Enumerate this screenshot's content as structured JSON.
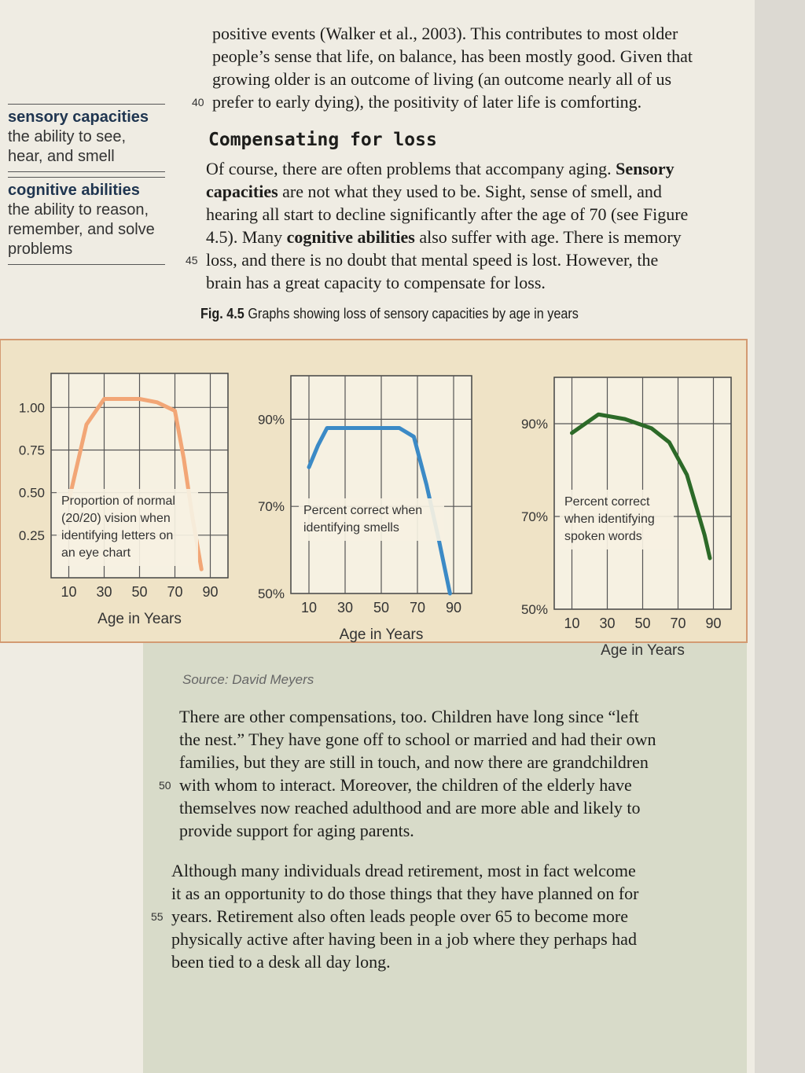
{
  "body_top": [
    "positive events (Walker et al., 2003). This contributes to most older",
    "people’s sense that life, on balance, has been mostly good. Given that",
    "growing older is an outcome of living (an outcome nearly all of us",
    "prefer to early dying), the positivity of later life is comforting."
  ],
  "heading": "Compensating for loss",
  "paragraph_1": [
    [
      "Of course, there are often problems that accompany aging. ",
      {
        "text": "Sensory",
        "bold": true
      }
    ],
    [
      {
        "text": "capacities",
        "bold": true
      },
      " are not what they used to be. Sight, sense of smell, and"
    ],
    "hearing all start to decline significantly after the age of 70 (see Figure",
    [
      "4.5). Many ",
      {
        "text": "cognitive abilities",
        "bold": true
      },
      " also suffer with age. There is memory"
    ],
    "loss, and there is no doubt that mental speed is lost. However, the",
    "brain has a great capacity to compensate for loss."
  ],
  "paragraph_2": [
    "There are other compensations, too. Children have long since “left",
    "the nest.” They have gone off to school or married and had their own",
    "families, but they are still in touch, and now there are grandchildren",
    "with whom to interact. Moreover, the children of the elderly have",
    "themselves now reached adulthood and are more able and likely to",
    "provide support for aging parents."
  ],
  "paragraph_3": [
    "Although many individuals dread retirement, most in fact welcome",
    "it as an opportunity to do those things that they have planned on for",
    "years. Retirement also often leads people over 65 to become more",
    "physically active after having been in a job where they perhaps had",
    "been tied to a desk all day long."
  ],
  "margin_numbers": [
    "40",
    "45",
    "50",
    "55"
  ],
  "glossary": [
    {
      "term": "sensory capacities",
      "definition": "the ability to see, hear, and smell"
    },
    {
      "term": "cognitive abilities",
      "definition": "the ability to reason, remember, and solve problems"
    }
  ],
  "figure": {
    "caption": {
      "label": "Fig. 4.5",
      "text": "Graphs showing loss of sensory capacities by age in years"
    },
    "source": "Source: David Meyers",
    "charts": [
      {
        "type": "line",
        "annotation": [
          "Proportion of normal",
          "(20/20) vision when",
          "identifying letters on",
          "an eye chart"
        ],
        "x_label": "Age in Years",
        "color": "#f2a676",
        "x": [
          10,
          20,
          30,
          50,
          60,
          70,
          75,
          80,
          85
        ],
        "values": [
          0.45,
          0.9,
          1.05,
          1.05,
          1.03,
          0.98,
          0.7,
          0.35,
          0.05
        ],
        "xlim": [
          0,
          100
        ],
        "xticks": [
          10,
          30,
          50,
          70,
          90
        ],
        "ylim": [
          0,
          1.2
        ],
        "yticks": [
          {
            "value": 0.25,
            "label": "0.25"
          },
          {
            "value": 0.5,
            "label": "0.50"
          },
          {
            "value": 0.75,
            "label": "0.75"
          },
          {
            "value": 1,
            "label": "1.00"
          }
        ],
        "grid": true
      },
      {
        "type": "line",
        "annotation": [
          "Percent correct when",
          "identifying smells"
        ],
        "x_label": "Age in Years",
        "color": "#3b8ac6",
        "x": [
          10,
          15,
          20,
          40,
          60,
          68,
          75,
          82,
          88
        ],
        "values": [
          79,
          84,
          88,
          88,
          88,
          86,
          75,
          62,
          50
        ],
        "xlim": [
          0,
          100
        ],
        "xticks": [
          10,
          30,
          50,
          70,
          90
        ],
        "ylim": [
          50,
          100
        ],
        "yticks": [
          {
            "value": 50,
            "label": "50%"
          },
          {
            "value": 70,
            "label": "70%"
          },
          {
            "value": 90,
            "label": "90%"
          }
        ],
        "grid": true
      },
      {
        "type": "line",
        "annotation": [
          "Percent correct",
          "when identifying",
          "spoken words"
        ],
        "x_label": "Age in Years",
        "color": "#2c6a28",
        "x": [
          10,
          25,
          40,
          55,
          65,
          75,
          85,
          88
        ],
        "values": [
          88,
          92,
          91,
          89,
          86,
          79,
          66,
          61
        ],
        "xlim": [
          0,
          100
        ],
        "xticks": [
          10,
          30,
          50,
          70,
          90
        ],
        "ylim": [
          50,
          100
        ],
        "yticks": [
          {
            "value": 50,
            "label": "50%"
          },
          {
            "value": 70,
            "label": "70%"
          },
          {
            "value": 90,
            "label": "90%"
          }
        ],
        "grid": true
      }
    ]
  }
}
